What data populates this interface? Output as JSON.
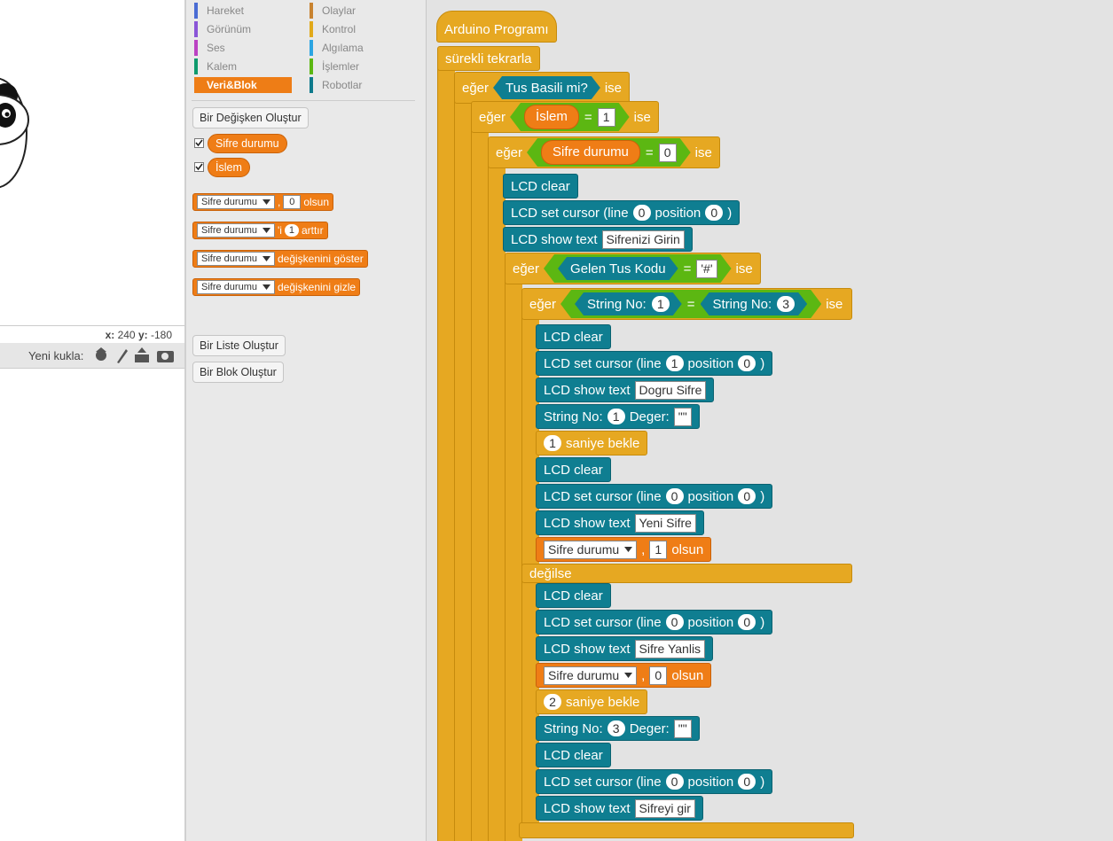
{
  "stage": {
    "x_label": "x:",
    "x": 240,
    "y_label": "y:",
    "y": -180,
    "new_sprite": "Yeni kukla:"
  },
  "palette": {
    "categories": [
      {
        "name": "Hareket",
        "color": "#4a6cd4"
      },
      {
        "name": "Görünüm",
        "color": "#8a55d7"
      },
      {
        "name": "Ses",
        "color": "#bb42c3"
      },
      {
        "name": "Kalem",
        "color": "#0e9a6c"
      },
      {
        "name": "Veri&Blok",
        "color": "#ee7d16",
        "selected": true
      },
      {
        "name": "Olaylar",
        "color": "#c88330"
      },
      {
        "name": "Kontrol",
        "color": "#e1a91a"
      },
      {
        "name": "Algılama",
        "color": "#2ca5e2"
      },
      {
        "name": "İşlemler",
        "color": "#5cb712"
      },
      {
        "name": "Robotlar",
        "color": "#0e7a8c"
      }
    ],
    "make_variable": "Bir Değişken Oluştur",
    "variables": [
      "Sifre durumu",
      "İslem"
    ],
    "blocks": [
      {
        "parts": [
          {
            "drop": "Sifre durumu"
          },
          ",",
          {
            "box": 0
          },
          "olsun"
        ]
      },
      {
        "parts": [
          {
            "drop": "Sifre durumu"
          },
          "'i",
          {
            "num": 1
          },
          "arttır"
        ]
      },
      {
        "parts": [
          {
            "drop": "Sifre durumu"
          },
          "değişkenini göster"
        ]
      },
      {
        "parts": [
          {
            "drop": "Sifre durumu"
          },
          "değişkenini gizle"
        ]
      }
    ],
    "make_list": "Bir Liste Oluştur",
    "make_block": "Bir Blok Oluştur"
  },
  "script": {
    "blocks": [
      {
        "kind": "hat",
        "parts": [
          "Arduino Programı"
        ]
      },
      {
        "kind": "control",
        "parts": [
          "sürekli tekrarla"
        ]
      },
      {
        "kind": "if",
        "parts": [
          "eğer",
          {
            "sense": [
              "Tus Basili mi?"
            ]
          },
          "ise"
        ]
      },
      {
        "kind": "if",
        "parts": [
          "eğer",
          {
            "bool": [
              {
                "var": "İslem"
              },
              "=",
              {
                "box": 1
              }
            ]
          },
          "ise"
        ]
      },
      {
        "kind": "if",
        "parts": [
          "eğer",
          {
            "bool": [
              {
                "var": "Sifre durumu"
              },
              "=",
              {
                "box": 0
              }
            ]
          },
          "ise"
        ]
      },
      {
        "kind": "lcd",
        "parts": [
          "LCD clear"
        ]
      },
      {
        "kind": "lcd",
        "parts": [
          "LCD set cursor (line",
          {
            "num": 0
          },
          "position",
          {
            "num": 0
          },
          ")"
        ]
      },
      {
        "kind": "lcd",
        "parts": [
          "LCD show text",
          {
            "str": "Sifrenizi Girin"
          }
        ]
      },
      {
        "kind": "if",
        "parts": [
          "eğer",
          {
            "bool": [
              {
                "sense": [
                  "Gelen Tus Kodu"
                ]
              },
              "=",
              {
                "str": "'#'"
              }
            ]
          },
          "ise"
        ]
      },
      {
        "kind": "if",
        "parts": [
          "eğer",
          {
            "bool": [
              {
                "sense": [
                  "String No:",
                  {
                    "num": 1
                  }
                ]
              },
              "=",
              {
                "sense": [
                  "String No:",
                  {
                    "num": 3
                  }
                ]
              }
            ]
          },
          "ise"
        ]
      },
      {
        "kind": "lcd",
        "parts": [
          "LCD clear"
        ]
      },
      {
        "kind": "lcd",
        "parts": [
          "LCD set cursor (line",
          {
            "num": 1
          },
          "position",
          {
            "num": 0
          },
          ")"
        ]
      },
      {
        "kind": "lcd",
        "parts": [
          "LCD show text",
          {
            "str": "Dogru Sifre"
          }
        ]
      },
      {
        "kind": "lcd",
        "parts": [
          "String No:",
          {
            "num": 1
          },
          "Deger:",
          {
            "str": "\"\""
          }
        ]
      },
      {
        "kind": "control",
        "parts": [
          {
            "num": 1
          },
          "saniye bekle"
        ]
      },
      {
        "kind": "lcd",
        "parts": [
          "LCD clear"
        ]
      },
      {
        "kind": "lcd",
        "parts": [
          "LCD set cursor (line",
          {
            "num": 0
          },
          "position",
          {
            "num": 0
          },
          ")"
        ]
      },
      {
        "kind": "lcd",
        "parts": [
          "LCD show text",
          {
            "str": "Yeni Sifre"
          }
        ]
      },
      {
        "kind": "var",
        "parts": [
          {
            "drop": "Sifre durumu"
          },
          ",",
          {
            "box": 1
          },
          "olsun"
        ]
      },
      {
        "kind": "else",
        "parts": [
          "değilse"
        ]
      },
      {
        "kind": "lcd",
        "parts": [
          "LCD clear"
        ]
      },
      {
        "kind": "lcd",
        "parts": [
          "LCD set cursor (line",
          {
            "num": 0
          },
          "position",
          {
            "num": 0
          },
          ")"
        ]
      },
      {
        "kind": "lcd",
        "parts": [
          "LCD show text",
          {
            "str": "Sifre Yanlis"
          }
        ]
      },
      {
        "kind": "var",
        "parts": [
          {
            "drop": "Sifre durumu"
          },
          ",",
          {
            "box": 0
          },
          "olsun"
        ]
      },
      {
        "kind": "control",
        "parts": [
          {
            "num": 2
          },
          "saniye bekle"
        ]
      },
      {
        "kind": "lcd",
        "parts": [
          "String No:",
          {
            "num": 3
          },
          "Deger:",
          {
            "str": "\"\""
          }
        ]
      },
      {
        "kind": "lcd",
        "parts": [
          "LCD clear"
        ]
      },
      {
        "kind": "lcd",
        "parts": [
          "LCD set cursor (line",
          {
            "num": 0
          },
          "position",
          {
            "num": 0
          },
          ")"
        ]
      },
      {
        "kind": "lcd",
        "parts": [
          "LCD show text",
          {
            "str": "Sifreyi gir"
          }
        ]
      }
    ]
  }
}
